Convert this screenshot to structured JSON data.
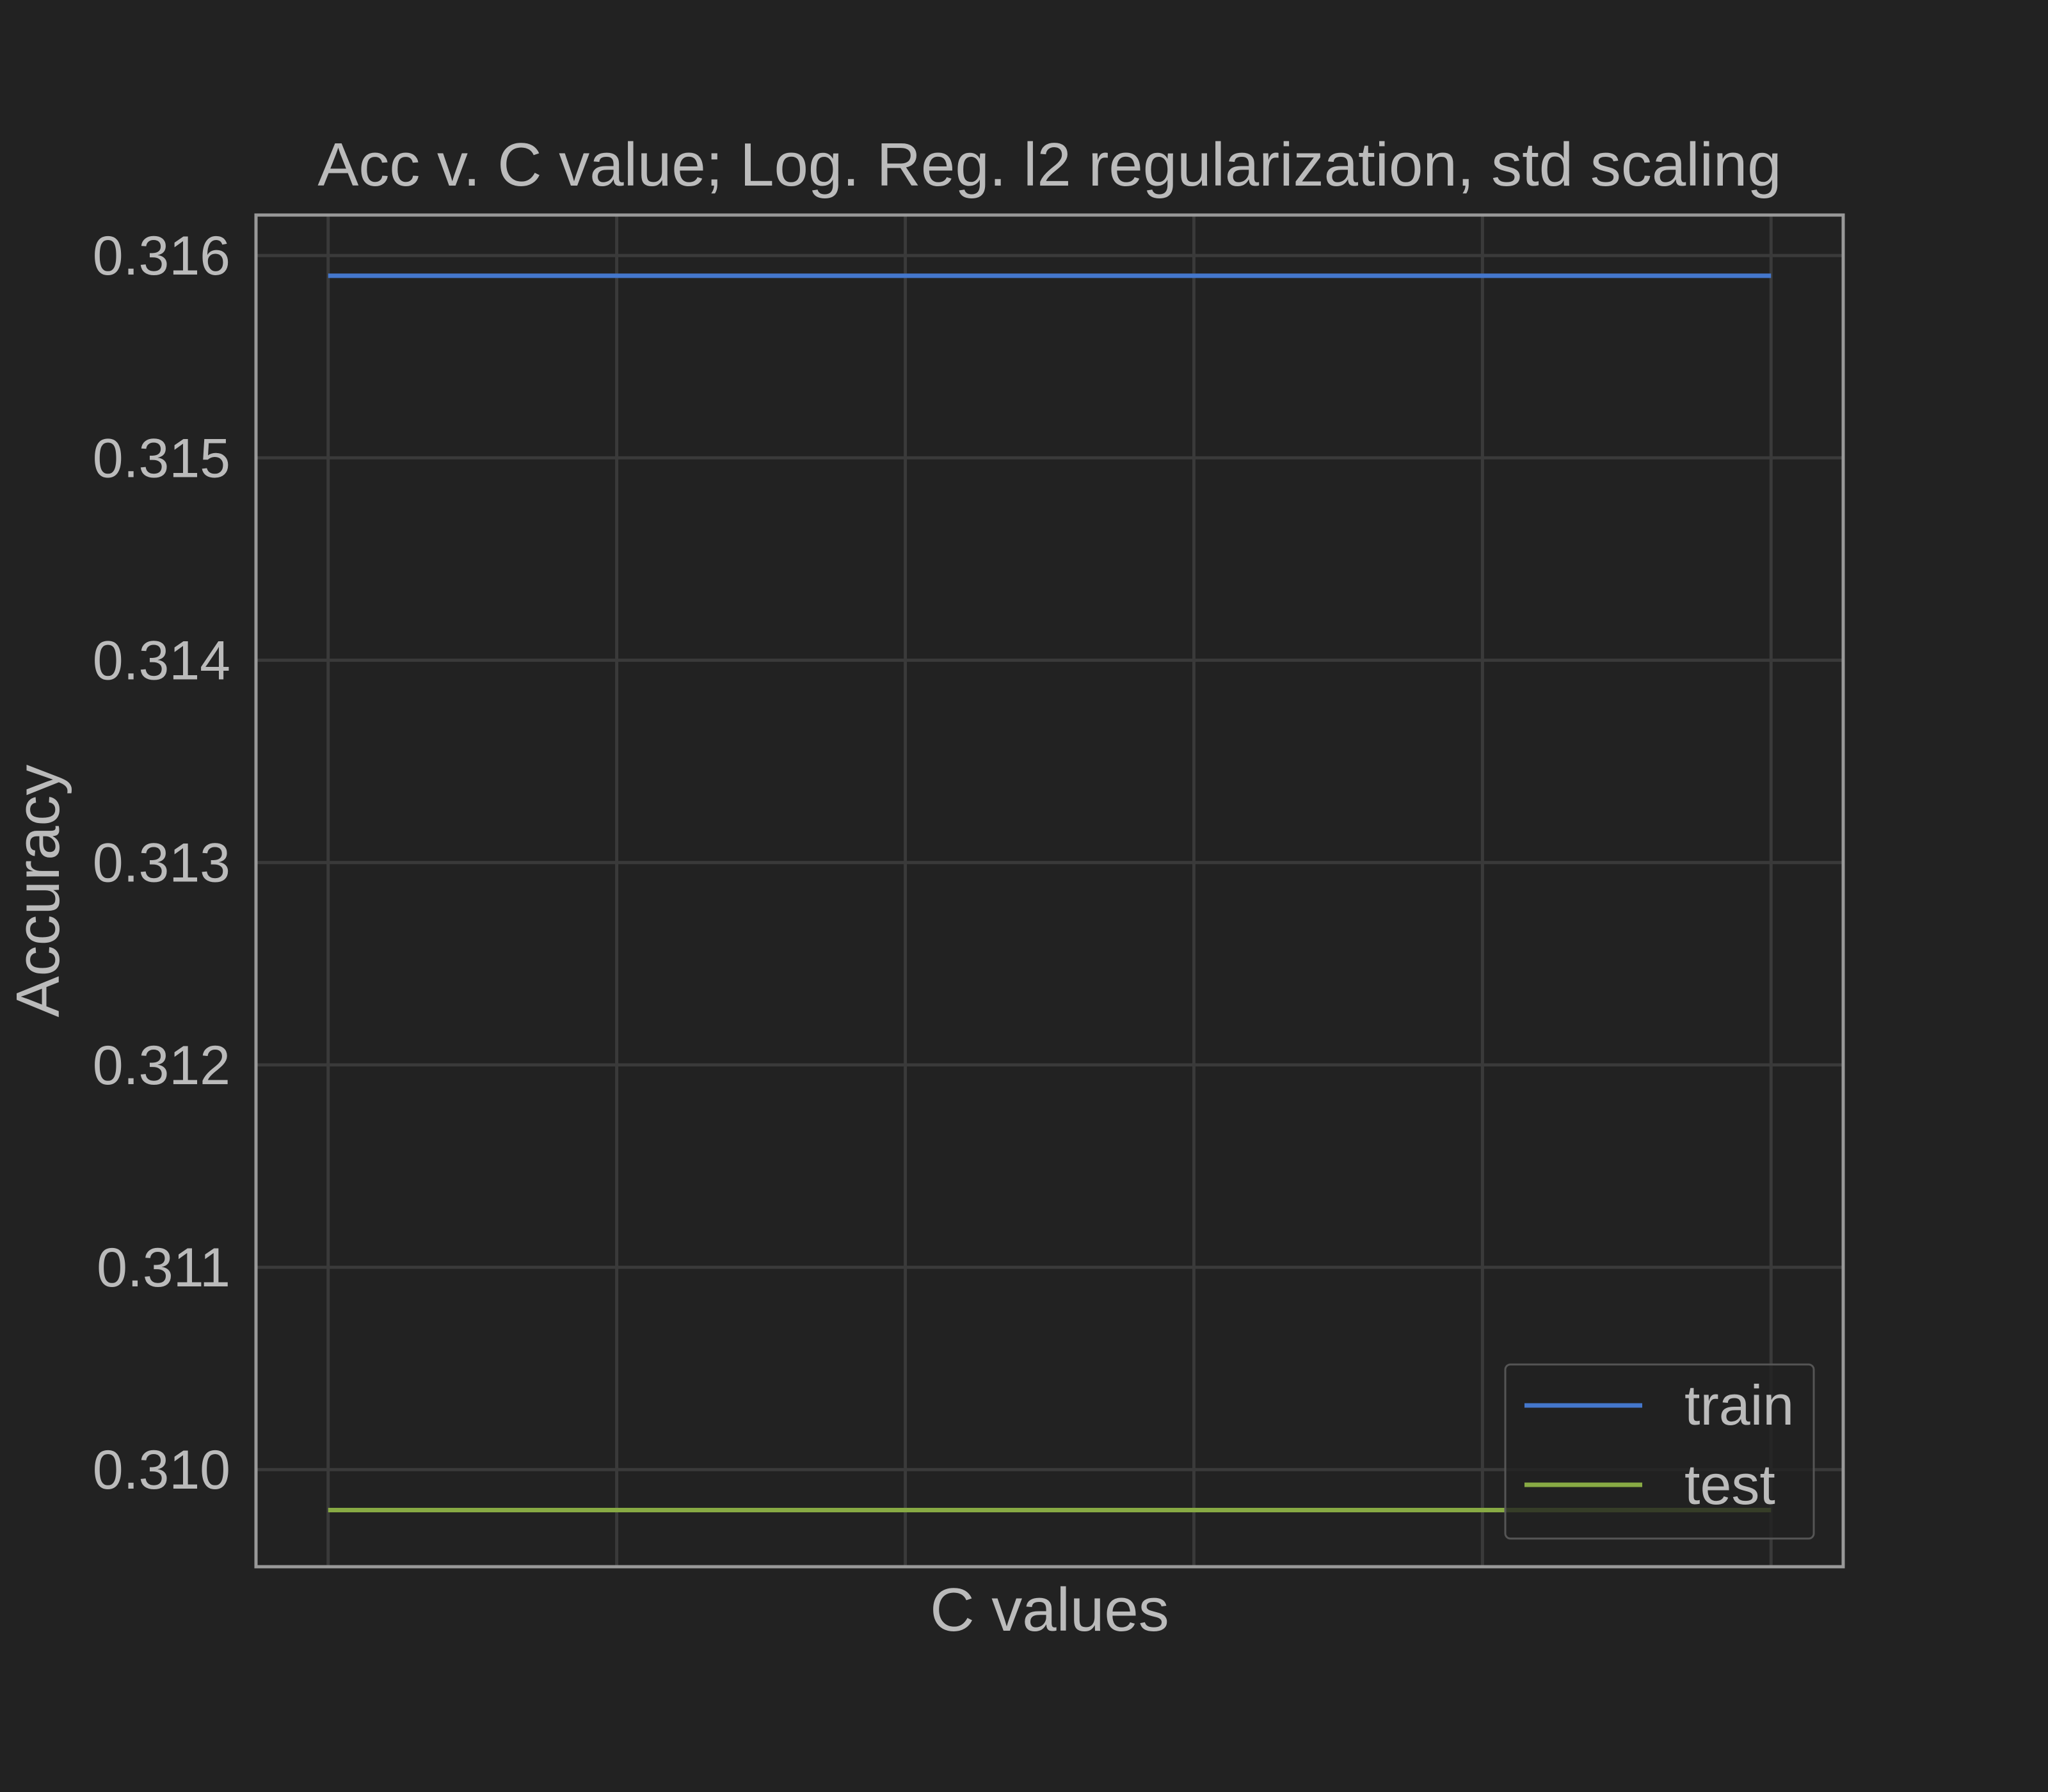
{
  "chart_data": {
    "type": "line",
    "title": "Acc v. C value; Log. Reg. l2 regularization, std scaling",
    "xlabel": "C values",
    "ylabel": "Accuracy",
    "x": [
      1,
      2,
      3,
      4,
      5,
      6
    ],
    "xlim": [
      0.75,
      6.25
    ],
    "ylim": [
      0.30952,
      0.3162
    ],
    "yticks": [
      0.31,
      0.311,
      0.312,
      0.313,
      0.314,
      0.315,
      0.316
    ],
    "ytick_labels": [
      "0.310",
      "0.311",
      "0.312",
      "0.313",
      "0.314",
      "0.315",
      "0.316"
    ],
    "xtick_labels_shown": false,
    "grid": true,
    "legend_position": "lower-right",
    "series": [
      {
        "name": "train",
        "values": [
          0.3159,
          0.3159,
          0.3159,
          0.3159,
          0.3159,
          0.3159
        ],
        "color": "#4477cc"
      },
      {
        "name": "test",
        "values": [
          0.3098,
          0.3098,
          0.3098,
          0.3098,
          0.3098,
          0.3098
        ],
        "color": "#88aa44"
      }
    ],
    "colors": {
      "background": "#222222",
      "grid": "#3a3a3a",
      "axes_border": "#999999",
      "text": "#bbbbbb"
    }
  }
}
